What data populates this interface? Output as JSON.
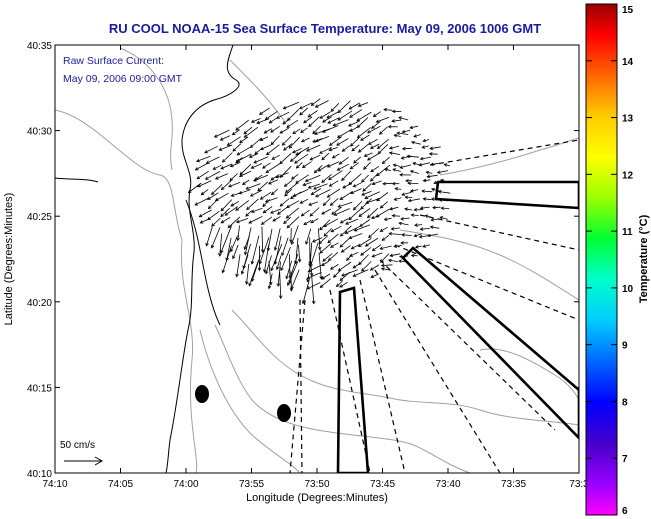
{
  "title": "RU COOL  NOAA-15  Sea Surface Temperature:  May 09, 2006 1006 GMT",
  "annotation": {
    "line1": "Raw Surface Current:",
    "line2": "May 09, 2006 09:00 GMT"
  },
  "scale_label": "50 cm/s",
  "chart_data": {
    "type": "map",
    "title": "RU COOL  NOAA-15  Sea Surface Temperature:  May 09, 2006 1006 GMT",
    "xlabel": "Longitude (Degrees:Minutes)",
    "ylabel": "Latitude (Degrees:Minutes)",
    "x_ticks": [
      "74:10",
      "74:05",
      "74:00",
      "73:55",
      "73:50",
      "73:45",
      "73:40",
      "73:35",
      "73:3"
    ],
    "y_ticks": [
      "40:35",
      "40:30",
      "40:25",
      "40:20",
      "40:15",
      "40:10"
    ],
    "colorbar": {
      "label": "Temperature (°C)",
      "range": [
        6,
        15
      ],
      "ticks": [
        "15",
        "14",
        "13",
        "12",
        "11",
        "10",
        "9",
        "8",
        "7",
        "6"
      ]
    },
    "colors": {
      "title": "#1a1aa6",
      "annotation": "#1a1aa6",
      "contour": "#a0a0a0",
      "vector": "#000000"
    }
  }
}
